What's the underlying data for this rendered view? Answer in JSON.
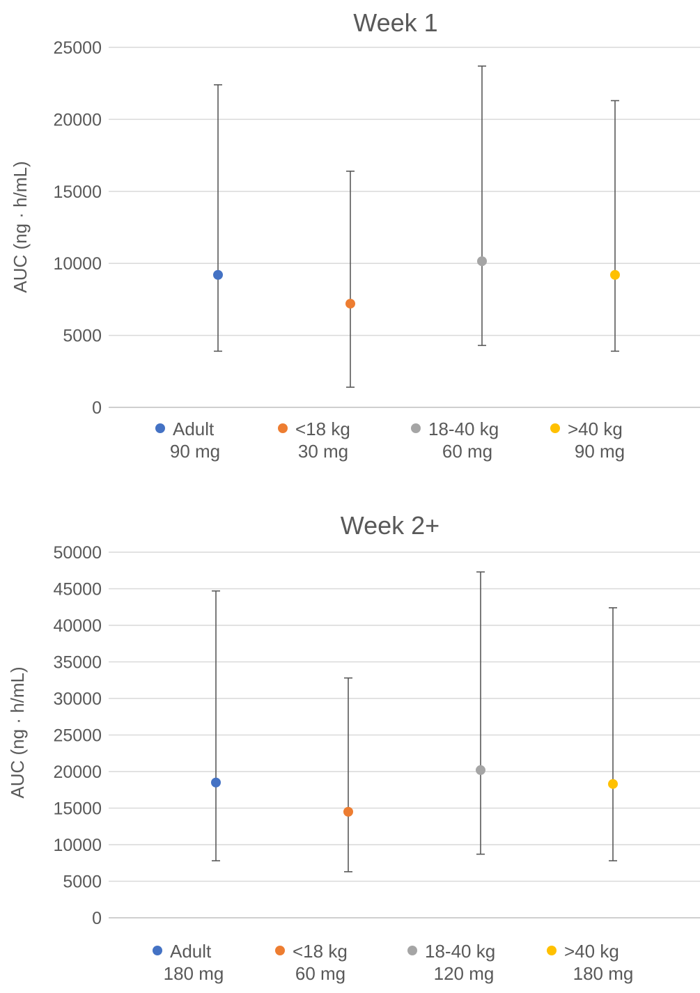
{
  "chart_data": [
    {
      "type": "scatter",
      "title": "Week 1",
      "xlabel": "",
      "ylabel": "AUC (ng · h/mL)",
      "ylim": [
        0,
        25000
      ],
      "yticks": [
        "0",
        "5000",
        "10000",
        "15000",
        "20000",
        "25000"
      ],
      "grid": true,
      "legend_position": "bottom",
      "series": [
        {
          "name": "Adult",
          "dose": "90 mg",
          "color": "#4472C4",
          "value": 9200,
          "low": 3900,
          "high": 22400
        },
        {
          "name": "<18 kg",
          "dose": "30 mg",
          "color": "#ED7D31",
          "value": 7200,
          "low": 1400,
          "high": 16400
        },
        {
          "name": "18-40 kg",
          "dose": "60 mg",
          "color": "#A5A5A5",
          "value": 10150,
          "low": 4300,
          "high": 23700
        },
        {
          "name": ">40 kg",
          "dose": "90 mg",
          "color": "#FFC000",
          "value": 9200,
          "low": 3900,
          "high": 21300
        }
      ]
    },
    {
      "type": "scatter",
      "title": "Week 2+",
      "xlabel": "",
      "ylabel": "AUC (ng · h/mL)",
      "ylim": [
        0,
        50000
      ],
      "yticks": [
        "0",
        "5000",
        "10000",
        "15000",
        "20000",
        "25000",
        "30000",
        "35000",
        "40000",
        "45000",
        "50000"
      ],
      "grid": true,
      "legend_position": "bottom",
      "series": [
        {
          "name": "Adult",
          "dose": "180 mg",
          "color": "#4472C4",
          "value": 18500,
          "low": 7800,
          "high": 44700
        },
        {
          "name": "<18 kg",
          "dose": "60 mg",
          "color": "#ED7D31",
          "value": 14500,
          "low": 6300,
          "high": 32800
        },
        {
          "name": "18-40 kg",
          "dose": "120 mg",
          "color": "#A5A5A5",
          "value": 20200,
          "low": 8700,
          "high": 47300
        },
        {
          "name": ">40 kg",
          "dose": "180 mg",
          "color": "#FFC000",
          "value": 18300,
          "low": 7800,
          "high": 42400
        }
      ]
    }
  ]
}
